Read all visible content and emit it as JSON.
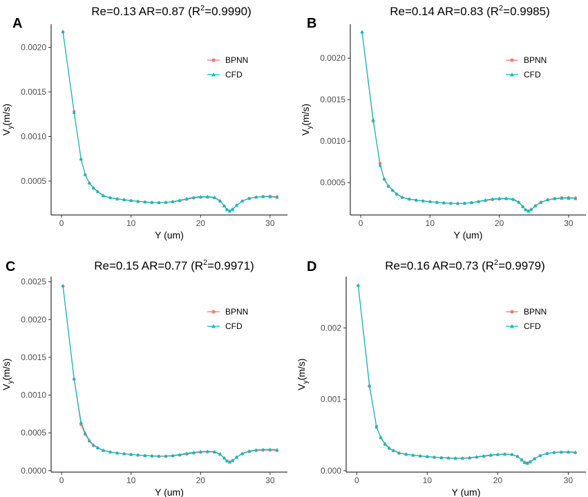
{
  "chart_data": [
    {
      "panel": "A",
      "type": "line",
      "title": "Re=0.13 AR=0.87 (R",
      "title_sup": "2",
      "title_end": "=0.9990)",
      "xlabel": "Y (um)",
      "ylabel_main": "V",
      "ylabel_sub": "y",
      "ylabel_end": "(m/s)",
      "xlim": [
        -1.5,
        32.5
      ],
      "ylim": [
        0.00012,
        0.00226
      ],
      "xticks": [
        0,
        10,
        20,
        30
      ],
      "xtick_labels": [
        "0",
        "10",
        "20",
        "30"
      ],
      "yticks": [
        0.0005,
        0.001,
        0.0015,
        0.002
      ],
      "ytick_labels": [
        "0.0005",
        "0.0010",
        "0.0015",
        "0.0020"
      ],
      "legend": [
        "BPNN",
        "CFD"
      ],
      "colors": {
        "BPNN": "#F8766D",
        "CFD": "#00BFC4"
      },
      "series": [
        {
          "name": "BPNN",
          "marker": "circle",
          "x": [
            0.2,
            1.8,
            2.8,
            3.4,
            4.0,
            4.6,
            5.2,
            6,
            7,
            8,
            9,
            10,
            11,
            12,
            13,
            14,
            15,
            16,
            17,
            18,
            19,
            20,
            21,
            22,
            22.8,
            23.4,
            23.8,
            24.2,
            24.6,
            25.2,
            26,
            27,
            28,
            29,
            30,
            31
          ],
          "y": [
            0.00217,
            0.00128,
            0.000745,
            0.00057,
            0.000475,
            0.00042,
            0.00038,
            0.000335,
            0.000312,
            0.0003,
            0.00029,
            0.00028,
            0.000272,
            0.000265,
            0.00026,
            0.000258,
            0.00026,
            0.000268,
            0.00028,
            0.000295,
            0.00031,
            0.000318,
            0.00032,
            0.000312,
            0.000275,
            0.00022,
            0.00018,
            0.000165,
            0.000185,
            0.00023,
            0.000275,
            0.000305,
            0.00032,
            0.000328,
            0.00033,
            0.000325
          ]
        },
        {
          "name": "CFD",
          "marker": "triangle",
          "x": [
            0.2,
            1.8,
            2.8,
            3.4,
            4.0,
            4.6,
            5.2,
            6,
            7,
            8,
            9,
            10,
            11,
            12,
            13,
            14,
            15,
            16,
            17,
            18,
            19,
            20,
            21,
            22,
            22.8,
            23.4,
            23.8,
            24.2,
            24.6,
            25.2,
            26,
            27,
            28,
            29,
            30,
            31
          ],
          "y": [
            0.00218,
            0.00127,
            0.00075,
            0.000575,
            0.00048,
            0.000425,
            0.000385,
            0.000338,
            0.000315,
            0.000302,
            0.000292,
            0.000282,
            0.000274,
            0.000267,
            0.000262,
            0.00026,
            0.000262,
            0.00027,
            0.000285,
            0.000303,
            0.000318,
            0.000326,
            0.000328,
            0.000318,
            0.00028,
            0.000222,
            0.000182,
            0.000163,
            0.000182,
            0.000228,
            0.000278,
            0.000308,
            0.00032,
            0.000325,
            0.000324,
            0.000318
          ]
        }
      ]
    },
    {
      "panel": "B",
      "type": "line",
      "title": "Re=0.14 AR=0.83 (R",
      "title_sup": "2",
      "title_end": "=0.9985)",
      "xlabel": "Y (um)",
      "ylabel_main": "V",
      "ylabel_sub": "y",
      "ylabel_end": "(m/s)",
      "xlim": [
        -1.5,
        32.5
      ],
      "ylim": [
        0.00011,
        0.00241
      ],
      "xticks": [
        0,
        10,
        20,
        30
      ],
      "xtick_labels": [
        "0",
        "10",
        "20",
        "30"
      ],
      "yticks": [
        0.0005,
        0.001,
        0.0015,
        0.002
      ],
      "ytick_labels": [
        "0.0005",
        "0.0010",
        "0.0015",
        "0.0020"
      ],
      "legend": [
        "BPNN",
        "CFD"
      ],
      "colors": {
        "BPNN": "#F8766D",
        "CFD": "#00BFC4"
      },
      "series": [
        {
          "name": "BPNN",
          "marker": "circle",
          "x": [
            0.2,
            1.8,
            2.8,
            3.4,
            4.0,
            4.6,
            5.2,
            6,
            7,
            8,
            9,
            10,
            11,
            12,
            13,
            14,
            15,
            16,
            17,
            18,
            19,
            20,
            21,
            22,
            22.8,
            23.4,
            23.8,
            24.2,
            24.6,
            25.2,
            26,
            27,
            28,
            29,
            30,
            31
          ],
          "y": [
            0.00231,
            0.00124,
            0.00073,
            0.00054,
            0.000455,
            0.000405,
            0.00036,
            0.00032,
            0.0003,
            0.000288,
            0.000278,
            0.00027,
            0.000262,
            0.000255,
            0.00025,
            0.000248,
            0.00025,
            0.000258,
            0.00027,
            0.000283,
            0.000295,
            0.000302,
            0.000304,
            0.000295,
            0.000262,
            0.00021,
            0.000172,
            0.000158,
            0.000178,
            0.000222,
            0.000265,
            0.000295,
            0.00031,
            0.000318,
            0.00032,
            0.000316
          ]
        },
        {
          "name": "CFD",
          "marker": "triangle",
          "x": [
            0.2,
            1.8,
            2.8,
            3.4,
            4.0,
            4.6,
            5.2,
            6,
            7,
            8,
            9,
            10,
            11,
            12,
            13,
            14,
            15,
            16,
            17,
            18,
            19,
            20,
            21,
            22,
            22.8,
            23.4,
            23.8,
            24.2,
            24.6,
            25.2,
            26,
            27,
            28,
            29,
            30,
            31
          ],
          "y": [
            0.00232,
            0.00126,
            0.00071,
            0.000545,
            0.00046,
            0.00041,
            0.000365,
            0.000325,
            0.000303,
            0.00029,
            0.00028,
            0.000272,
            0.000264,
            0.000257,
            0.000252,
            0.00025,
            0.000252,
            0.00026,
            0.000274,
            0.00029,
            0.000303,
            0.00031,
            0.000312,
            0.000302,
            0.000268,
            0.000212,
            0.000173,
            0.000156,
            0.000175,
            0.000218,
            0.000262,
            0.000292,
            0.000306,
            0.000312,
            0.000312,
            0.000308
          ]
        }
      ]
    },
    {
      "panel": "C",
      "type": "line",
      "title": "Re=0.15 AR=0.77 (R",
      "title_sup": "2",
      "title_end": "=0.9971)",
      "xlabel": "Y (um)",
      "ylabel_main": "V",
      "ylabel_sub": "y",
      "ylabel_end": "(m/s)",
      "xlim": [
        -1.5,
        32.5
      ],
      "ylim": [
        -2e-05,
        0.00257
      ],
      "xticks": [
        0,
        10,
        20,
        30
      ],
      "xtick_labels": [
        "0",
        "10",
        "20",
        "30"
      ],
      "yticks": [
        0.0,
        0.0005,
        0.001,
        0.0015,
        0.002,
        0.0025
      ],
      "ytick_labels": [
        "0.0000",
        "0.0005",
        "0.0010",
        "0.0015",
        "0.0020",
        "0.0025"
      ],
      "legend": [
        "BPNN",
        "CFD"
      ],
      "colors": {
        "BPNN": "#F8766D",
        "CFD": "#00BFC4"
      },
      "series": [
        {
          "name": "BPNN",
          "marker": "circle",
          "x": [
            0.2,
            1.8,
            2.8,
            3.4,
            4.0,
            4.6,
            5.2,
            6,
            7,
            8,
            9,
            10,
            11,
            12,
            13,
            14,
            15,
            16,
            17,
            18,
            19,
            20,
            21,
            22,
            22.8,
            23.4,
            23.8,
            24.2,
            24.6,
            25.2,
            26,
            27,
            28,
            29,
            30,
            31
          ],
          "y": [
            0.00244,
            0.00121,
            0.00061,
            0.00048,
            0.00039,
            0.00033,
            0.0003,
            0.000265,
            0.000245,
            0.000232,
            0.000222,
            0.000213,
            0.000205,
            0.000198,
            0.000193,
            0.00019,
            0.00019,
            0.000195,
            0.000205,
            0.000218,
            0.000232,
            0.000243,
            0.000248,
            0.000244,
            0.000215,
            0.000165,
            0.000128,
            0.000115,
            0.000135,
            0.000178,
            0.000222,
            0.000252,
            0.000265,
            0.00027,
            0.00027,
            0.000264
          ]
        },
        {
          "name": "CFD",
          "marker": "triangle",
          "x": [
            0.2,
            1.8,
            2.8,
            3.4,
            4.0,
            4.6,
            5.2,
            6,
            7,
            8,
            9,
            10,
            11,
            12,
            13,
            14,
            15,
            16,
            17,
            18,
            19,
            20,
            21,
            22,
            22.8,
            23.4,
            23.8,
            24.2,
            24.6,
            25.2,
            26,
            27,
            28,
            29,
            30,
            31
          ],
          "y": [
            0.00245,
            0.00122,
            0.00064,
            0.0005,
            0.0004,
            0.00034,
            0.000305,
            0.000268,
            0.000248,
            0.000234,
            0.000224,
            0.000215,
            0.000207,
            0.0002,
            0.000195,
            0.000192,
            0.000193,
            0.0002,
            0.000213,
            0.000228,
            0.000242,
            0.000252,
            0.000256,
            0.00025,
            0.00022,
            0.000168,
            0.000128,
            0.000112,
            0.000132,
            0.000178,
            0.000228,
            0.00026,
            0.000274,
            0.00028,
            0.000282,
            0.000278
          ]
        }
      ]
    },
    {
      "panel": "D",
      "type": "line",
      "title": "Re=0.16 AR=0.73 (R",
      "title_sup": "2",
      "title_end": "=0.9979)",
      "xlabel": "Y (um)",
      "ylabel_main": "V",
      "ylabel_sub": "y",
      "ylabel_end": "(m/s)",
      "xlim": [
        -1.5,
        32.5
      ],
      "ylim": [
        -2e-05,
        0.00272
      ],
      "xticks": [
        0,
        10,
        20,
        30
      ],
      "xtick_labels": [
        "0",
        "10",
        "20",
        "30"
      ],
      "yticks": [
        0.0,
        0.001,
        0.002
      ],
      "ytick_labels": [
        "0.000",
        "0.001",
        "0.002"
      ],
      "legend": [
        "BPNN",
        "CFD"
      ],
      "colors": {
        "BPNN": "#F8766D",
        "CFD": "#00BFC4"
      },
      "series": [
        {
          "name": "BPNN",
          "marker": "circle",
          "x": [
            0.2,
            1.8,
            2.8,
            3.4,
            4.0,
            4.6,
            5.2,
            6,
            7,
            8,
            9,
            10,
            11,
            12,
            13,
            14,
            15,
            16,
            17,
            18,
            19,
            20,
            21,
            22,
            22.8,
            23.4,
            23.8,
            24.2,
            24.6,
            25.2,
            26,
            27,
            28,
            29,
            30,
            31
          ],
          "y": [
            0.00259,
            0.00118,
            0.00062,
            0.00046,
            0.00037,
            0.00031,
            0.00028,
            0.000245,
            0.000228,
            0.000215,
            0.000205,
            0.000196,
            0.000188,
            0.000181,
            0.000176,
            0.000173,
            0.000173,
            0.000178,
            0.000188,
            0.0002,
            0.000213,
            0.000224,
            0.00023,
            0.000226,
            0.0002,
            0.000152,
            0.000118,
            0.000108,
            0.000128,
            0.000168,
            0.00021,
            0.00024,
            0.000253,
            0.000258,
            0.000258,
            0.000252
          ]
        },
        {
          "name": "CFD",
          "marker": "triangle",
          "x": [
            0.2,
            1.8,
            2.8,
            3.4,
            4.0,
            4.6,
            5.2,
            6,
            7,
            8,
            9,
            10,
            11,
            12,
            13,
            14,
            15,
            16,
            17,
            18,
            19,
            20,
            21,
            22,
            22.8,
            23.4,
            23.8,
            24.2,
            24.6,
            25.2,
            26,
            27,
            28,
            29,
            30,
            31
          ],
          "y": [
            0.0026,
            0.0012,
            0.00061,
            0.00047,
            0.00038,
            0.000318,
            0.000285,
            0.00025,
            0.000232,
            0.000218,
            0.000208,
            0.000199,
            0.000191,
            0.000184,
            0.000179,
            0.000176,
            0.000177,
            0.000183,
            0.000195,
            0.000208,
            0.000221,
            0.00023,
            0.000234,
            0.000228,
            0.0002,
            0.00015,
            0.000115,
            0.000103,
            0.000122,
            0.000165,
            0.000212,
            0.000244,
            0.000258,
            0.000264,
            0.000265,
            0.00026
          ]
        }
      ]
    }
  ]
}
